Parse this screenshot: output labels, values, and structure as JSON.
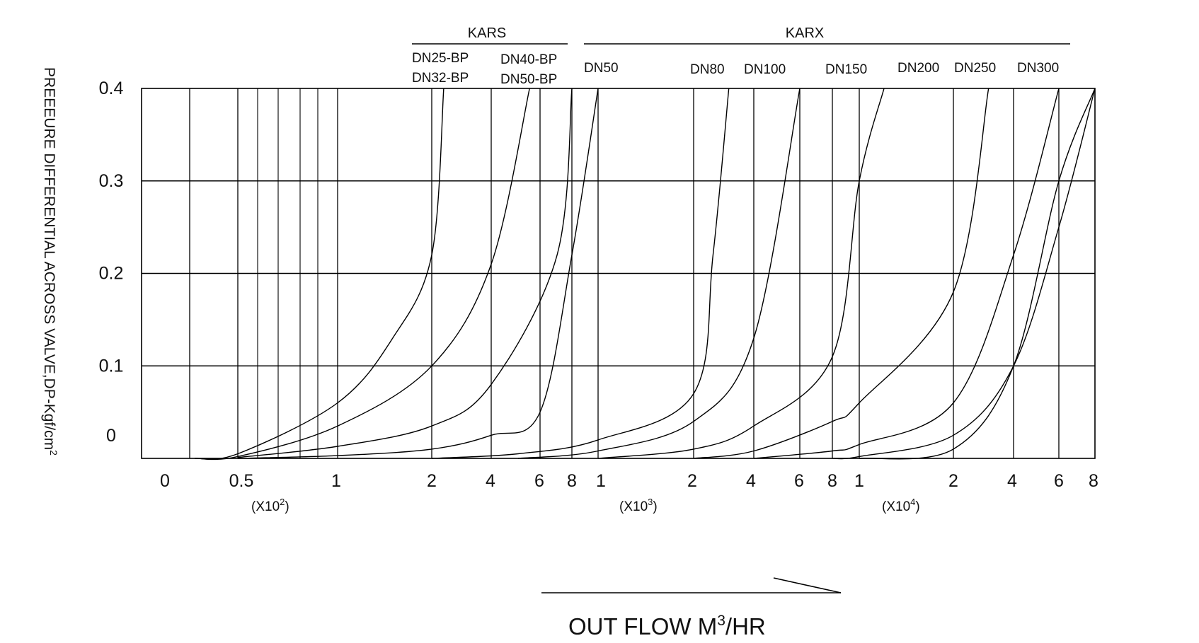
{
  "chart_data": {
    "type": "line",
    "xlabel": "OUT FLOW M3/HR",
    "xlabel_parts": {
      "main": "OUT FLOW M",
      "sup": "3",
      "tail": "/HR"
    },
    "ylabel": "PREEEURE DIFFERENTIAL ACROSS VALVE,DP-Kgf/cm2",
    "ylabel_parts": {
      "main": "PREEEURE DIFFERENTIAL ACROSS VALVE,DP-Kgf/cm",
      "sup": "2"
    },
    "ylim": [
      0,
      0.4
    ],
    "y_ticks": [
      "0.4",
      "0.3",
      "0.2",
      "0.1",
      "0"
    ],
    "x_scale": "log",
    "x_ticks": [
      "0",
      "0.5",
      "1",
      "2",
      "4",
      "6",
      "8",
      "1",
      "2",
      "4",
      "6",
      "8",
      "1",
      "2",
      "4",
      "6",
      "8"
    ],
    "x_tick_values": [
      20,
      50,
      100,
      200,
      400,
      600,
      800,
      1000,
      2000,
      4000,
      6000,
      8000,
      10000,
      20000,
      40000,
      60000,
      80000
    ],
    "x_multipliers": [
      {
        "text": "(X10",
        "sup": "2",
        "close": ")"
      },
      {
        "text": "(X10",
        "sup": "3",
        "close": ")"
      },
      {
        "text": "(X10",
        "sup": "4",
        "close": ")"
      }
    ],
    "groups": [
      {
        "name": "KARS"
      },
      {
        "name": "KARX"
      }
    ],
    "series": [
      {
        "name": "DN25-BP",
        "points": [
          [
            22,
            0.0
          ],
          [
            50,
            0.005
          ],
          [
            100,
            0.06
          ],
          [
            150,
            0.13
          ],
          [
            200,
            0.22
          ],
          [
            230,
            0.4
          ]
        ]
      },
      {
        "name": "DN32-BP",
        "points": [
          [
            22,
            0.0
          ],
          [
            50,
            0.002
          ],
          [
            100,
            0.035
          ],
          [
            200,
            0.1
          ],
          [
            400,
            0.21
          ],
          [
            550,
            0.4
          ]
        ]
      },
      {
        "name": "DN40-BP",
        "points": [
          [
            50,
            0.001
          ],
          [
            100,
            0.013
          ],
          [
            200,
            0.035
          ],
          [
            400,
            0.08
          ],
          [
            700,
            0.22
          ],
          [
            800,
            0.4
          ]
        ]
      },
      {
        "name": "DN50-BP",
        "points": [
          [
            50,
            0.0
          ],
          [
            100,
            0.003
          ],
          [
            200,
            0.01
          ],
          [
            400,
            0.025
          ],
          [
            600,
            0.05
          ],
          [
            800,
            0.22
          ],
          [
            1000,
            0.4
          ]
        ]
      },
      {
        "name": "DN50",
        "points": [
          [
            200,
            0.0
          ],
          [
            500,
            0.005
          ],
          [
            1000,
            0.02
          ],
          [
            2000,
            0.07
          ],
          [
            2500,
            0.22
          ],
          [
            3000,
            0.4
          ]
        ]
      },
      {
        "name": "DN80",
        "points": [
          [
            500,
            0.0
          ],
          [
            1000,
            0.008
          ],
          [
            2000,
            0.04
          ],
          [
            4000,
            0.13
          ],
          [
            6000,
            0.4
          ]
        ]
      },
      {
        "name": "DN100",
        "points": [
          [
            1000,
            0.0
          ],
          [
            2000,
            0.01
          ],
          [
            4000,
            0.035
          ],
          [
            8000,
            0.11
          ],
          [
            10000,
            0.3
          ],
          [
            12000,
            0.4
          ]
        ]
      },
      {
        "name": "DN150",
        "points": [
          [
            2000,
            0.0
          ],
          [
            4000,
            0.008
          ],
          [
            8000,
            0.04
          ],
          [
            10000,
            0.06
          ],
          [
            20000,
            0.18
          ],
          [
            30000,
            0.4
          ]
        ]
      },
      {
        "name": "DN200",
        "points": [
          [
            4000,
            0.0
          ],
          [
            8000,
            0.008
          ],
          [
            10000,
            0.015
          ],
          [
            20000,
            0.06
          ],
          [
            40000,
            0.22
          ],
          [
            60000,
            0.4
          ]
        ]
      },
      {
        "name": "DN250",
        "points": [
          [
            8000,
            0.0
          ],
          [
            10000,
            0.002
          ],
          [
            20000,
            0.025
          ],
          [
            40000,
            0.1
          ],
          [
            60000,
            0.25
          ],
          [
            80000,
            0.4
          ]
        ]
      },
      {
        "name": "DN300",
        "points": [
          [
            10000,
            0.0
          ],
          [
            20000,
            0.01
          ],
          [
            40000,
            0.1
          ],
          [
            60000,
            0.3
          ],
          [
            80000,
            0.4
          ]
        ]
      }
    ],
    "grid": true,
    "legend": "none"
  }
}
